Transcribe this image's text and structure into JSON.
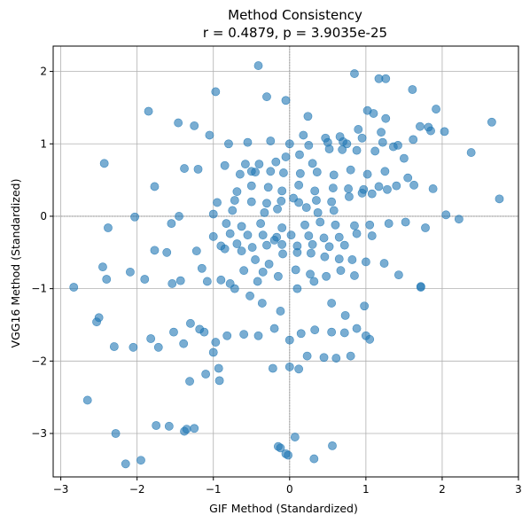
{
  "chart_data": {
    "type": "scatter",
    "title_line1": "Method Consistency",
    "title_line2": "r = 0.4879, p = 3.9035e-25",
    "xlabel": "GIF Method (Standardized)",
    "ylabel": "VGG16 Method (Standardized)",
    "xlim": [
      -3.1,
      3.0
    ],
    "ylim": [
      -3.6,
      2.35
    ],
    "xticks": [
      -3,
      -2,
      -1,
      0,
      1,
      2,
      3
    ],
    "yticks": [
      -3,
      -2,
      -1,
      0,
      1,
      2
    ],
    "xtick_labels": [
      "−3",
      "−2",
      "−1",
      "0",
      "1",
      "2",
      "3"
    ],
    "ytick_labels": [
      "−3",
      "−2",
      "−1",
      "0",
      "1",
      "2"
    ],
    "grid": true,
    "zero_lines": true,
    "point_color": "#1f77b4",
    "point_alpha": 0.6,
    "x": [
      -0.41,
      0.85,
      1.17,
      1.26,
      -0.97,
      -0.3,
      -0.05,
      0.24,
      1.02,
      1.1,
      1.26,
      1.82,
      1.92,
      2.65,
      -1.85,
      -1.46,
      -1.25,
      -1.05,
      0.18,
      0.47,
      0.66,
      0.9,
      1.2,
      1.61,
      1.71,
      1.85,
      2.03,
      2.38,
      2.75,
      -2.43,
      -1.38,
      -1.2,
      -0.85,
      -0.58,
      -0.5,
      -0.4,
      -0.18,
      -0.05,
      0.13,
      0.3,
      0.52,
      0.69,
      0.88,
      1.12,
      1.36,
      1.5,
      -1.77,
      -2.03,
      -1.45,
      -1.0,
      -0.75,
      -0.33,
      -0.16,
      0.05,
      0.22,
      0.37,
      0.58,
      0.78,
      0.95,
      1.08,
      1.28,
      1.55,
      2.05,
      2.22,
      -2.45,
      -2.38,
      -2.09,
      -1.77,
      -1.61,
      -1.22,
      -0.85,
      -0.63,
      -0.45,
      -0.27,
      -0.09,
      0.1,
      0.28,
      0.46,
      0.65,
      0.82,
      1.0,
      1.24,
      1.43,
      1.72,
      -2.83,
      -2.53,
      -2.4,
      -2.05,
      -1.72,
      -1.52,
      -1.3,
      -1.12,
      -0.97,
      -0.82,
      -0.6,
      -0.41,
      -0.2,
      0.0,
      0.15,
      0.33,
      0.55,
      0.72,
      0.88,
      1.05,
      -2.5,
      -2.3,
      -1.82,
      -1.39,
      -1.18,
      -0.92,
      -0.72,
      -0.52,
      -0.36,
      -0.12,
      0.1,
      0.32,
      0.55,
      0.73,
      0.98,
      1.72,
      -1.9,
      -1.58,
      -1.38,
      -1.1,
      -0.93,
      -0.42,
      -0.22,
      0.0,
      0.12,
      0.23,
      0.45,
      0.61,
      0.8,
      1.0,
      -2.65,
      -2.28,
      -1.75,
      -1.35,
      -1.31,
      -1.0,
      -0.12,
      -0.02,
      0.07,
      0.32,
      0.56,
      -1.54,
      -1.43,
      -1.08,
      -0.9,
      -0.78,
      -0.6,
      -0.35,
      -0.15,
      0.08,
      0.27,
      0.48,
      0.67,
      0.85,
      -1.95,
      -2.15,
      -1.25,
      -0.15,
      -0.05,
      -0.83,
      -1.55,
      -0.63,
      -0.38,
      -0.1,
      0.2,
      0.4,
      0.6,
      0.85,
      1.05,
      1.3,
      1.52,
      1.78,
      -0.69,
      -0.5,
      -0.28,
      -0.1,
      0.12,
      0.33,
      0.57,
      0.77,
      0.97,
      1.17,
      1.4,
      1.63,
      1.88,
      -1.0,
      -0.78,
      -0.55,
      -0.35,
      -0.17,
      0.02,
      0.25,
      0.45,
      0.65,
      0.88,
      1.08,
      -0.65,
      -0.45,
      -0.25,
      -0.08,
      0.14,
      0.36,
      0.58,
      0.8,
      1.02,
      1.25,
      -0.9,
      -0.69,
      -0.49,
      -0.3,
      -0.1,
      0.1,
      0.3,
      0.52,
      0.72,
      -0.95,
      -0.72,
      -0.5,
      -0.3,
      -0.11,
      0.12,
      0.35,
      0.55,
      -0.8,
      -0.55,
      -0.25,
      0.0,
      0.25,
      0.5,
      0.75,
      -1.15,
      -0.2,
      0.7,
      0.95,
      1.22,
      1.42,
      1.62
    ],
    "y": [
      2.08,
      1.97,
      1.9,
      1.9,
      1.72,
      1.65,
      1.6,
      1.38,
      1.46,
      1.42,
      1.35,
      1.23,
      1.48,
      1.3,
      1.45,
      1.29,
      1.25,
      1.12,
      1.12,
      1.08,
      1.1,
      1.2,
      1.16,
      1.75,
      1.24,
      1.18,
      1.17,
      0.88,
      0.24,
      0.73,
      0.66,
      0.65,
      0.7,
      0.72,
      0.62,
      0.72,
      0.75,
      0.82,
      0.85,
      0.73,
      0.93,
      0.92,
      0.91,
      0.9,
      0.96,
      0.8,
      0.41,
      -0.01,
      0.0,
      0.03,
      0.08,
      0.05,
      0.1,
      0.25,
      0.12,
      0.05,
      0.08,
      0.27,
      0.32,
      0.31,
      0.37,
      0.53,
      0.02,
      -0.04,
      -0.7,
      -0.16,
      -0.77,
      -0.47,
      -0.5,
      -0.48,
      -0.45,
      -0.48,
      -0.6,
      -0.66,
      -0.52,
      -0.5,
      -0.51,
      -0.56,
      -0.59,
      -0.6,
      -0.63,
      -0.65,
      -0.81,
      -0.98,
      -0.98,
      -1.46,
      -0.87,
      -1.81,
      -1.81,
      -1.6,
      -1.48,
      -1.6,
      -1.74,
      -1.65,
      -1.63,
      -1.65,
      -1.55,
      -1.71,
      -1.62,
      -1.57,
      -1.6,
      -1.61,
      -1.55,
      -1.7,
      -1.4,
      -1.8,
      -1.69,
      -1.76,
      -1.56,
      -2.27,
      -1.0,
      -1.1,
      -1.2,
      -1.31,
      -1.0,
      -0.9,
      -1.2,
      -1.37,
      -1.24,
      -0.97,
      -0.87,
      -2.9,
      -2.97,
      -2.18,
      -2.1,
      -0.9,
      -2.1,
      -2.08,
      -2.11,
      -1.93,
      -1.95,
      -1.96,
      -1.93,
      -1.65,
      -2.54,
      -3.0,
      -2.89,
      -2.94,
      -2.28,
      -1.88,
      -3.2,
      -3.3,
      -3.05,
      -3.35,
      -3.17,
      -0.93,
      -0.89,
      -0.9,
      -0.88,
      -0.93,
      -0.75,
      -0.77,
      -0.83,
      -0.74,
      -0.8,
      -0.83,
      -0.75,
      -0.82,
      -3.37,
      -3.42,
      -2.93,
      -3.18,
      -3.28,
      -0.1,
      -0.1,
      -0.14,
      -0.1,
      -0.16,
      -0.12,
      -0.08,
      -0.12,
      -0.13,
      -0.12,
      -0.1,
      -0.08,
      -0.16,
      0.34,
      0.42,
      0.4,
      0.35,
      0.43,
      0.35,
      0.39,
      0.38,
      0.37,
      0.41,
      0.42,
      0.43,
      0.38,
      -0.28,
      -0.24,
      -0.26,
      -0.26,
      -0.29,
      -0.26,
      -0.27,
      -0.3,
      -0.29,
      -0.24,
      -0.27,
      0.58,
      0.61,
      0.62,
      0.6,
      0.59,
      0.61,
      0.57,
      0.64,
      0.58,
      0.62,
      -0.41,
      -0.38,
      -0.43,
      -0.4,
      -0.39,
      -0.41,
      -0.39,
      -0.42,
      -0.4,
      0.19,
      0.22,
      0.2,
      0.18,
      0.21,
      0.19,
      0.22,
      0.2,
      1.0,
      1.02,
      1.04,
      1.0,
      0.98,
      1.02,
      1.0,
      -0.72,
      -0.33,
      1.03,
      1.08,
      1.02,
      0.98,
      1.06
    ]
  }
}
